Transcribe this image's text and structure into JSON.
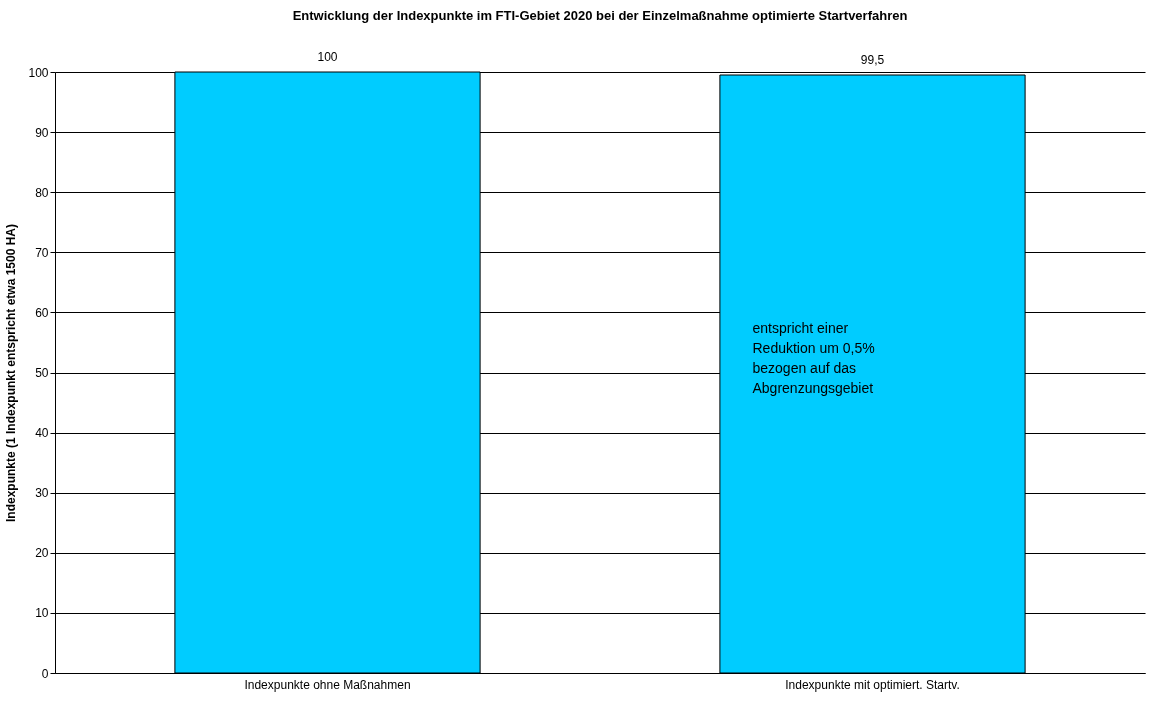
{
  "chart_data": {
    "type": "bar",
    "title": "Entwicklung der Indexpunkte im FTI-Gebiet 2020 bei der Einzelmaßnahme optimierte Startverfahren",
    "ylabel": "Indexpunkte (1 Indexpunkt entspricht etwa 1500 HA)",
    "categories": [
      "Indexpunkte ohne Maßnahmen",
      "Indexpunkte mit optimiert. Startv."
    ],
    "values": [
      100,
      99.5
    ],
    "value_labels": [
      "100",
      "99,5"
    ],
    "color": "#00ccff",
    "ylim": [
      0,
      100
    ],
    "yticks": [
      0,
      10,
      20,
      30,
      40,
      50,
      60,
      70,
      80,
      90,
      100
    ],
    "grid": "y",
    "annotations": [
      "entspricht einer\nReduktion um 0,5%\nbezogen auf das\nAbgrenzungsgebiet"
    ]
  }
}
